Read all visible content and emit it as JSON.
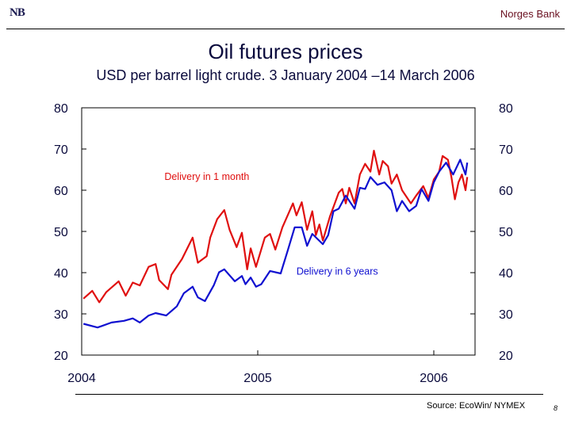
{
  "header": {
    "logo": "NB",
    "bank_name": "Norges Bank"
  },
  "footer": {
    "source": "Source: EcoWin/ NYMEX",
    "page_number": "8"
  },
  "chart_data": {
    "type": "line",
    "title": "Oil futures prices",
    "subtitle": "USD per barrel light crude. 3 January 2004 –14 March 2006",
    "xlim": [
      2004.0,
      2006.21
    ],
    "ylim": [
      20,
      80
    ],
    "yticks": [
      20,
      30,
      40,
      50,
      60,
      70,
      80
    ],
    "xticks": [
      {
        "value": 2004,
        "label": "2004"
      },
      {
        "value": 2005,
        "label": "2005"
      },
      {
        "value": 2006,
        "label": "2006"
      }
    ],
    "grid": false,
    "series": [
      {
        "name": "Delivery in 1 month",
        "color": "#e01010",
        "label_at": [
          2004.47,
          62.5
        ],
        "points": [
          [
            2004.01,
            33.7
          ],
          [
            2004.06,
            35.6
          ],
          [
            2004.1,
            32.8
          ],
          [
            2004.14,
            35.3
          ],
          [
            2004.21,
            37.9
          ],
          [
            2004.25,
            34.4
          ],
          [
            2004.29,
            37.6
          ],
          [
            2004.33,
            36.9
          ],
          [
            2004.38,
            41.4
          ],
          [
            2004.42,
            42.1
          ],
          [
            2004.44,
            38.2
          ],
          [
            2004.49,
            36.0
          ],
          [
            2004.51,
            39.5
          ],
          [
            2004.57,
            43.3
          ],
          [
            2004.63,
            48.5
          ],
          [
            2004.66,
            42.4
          ],
          [
            2004.71,
            44.0
          ],
          [
            2004.73,
            48.5
          ],
          [
            2004.77,
            53.0
          ],
          [
            2004.81,
            55.2
          ],
          [
            2004.84,
            50.4
          ],
          [
            2004.88,
            46.2
          ],
          [
            2004.91,
            49.7
          ],
          [
            2004.94,
            40.8
          ],
          [
            2004.96,
            45.9
          ],
          [
            2004.99,
            41.4
          ],
          [
            2005.04,
            48.5
          ],
          [
            2005.07,
            49.4
          ],
          [
            2005.1,
            45.6
          ],
          [
            2005.14,
            51.0
          ],
          [
            2005.2,
            56.8
          ],
          [
            2005.22,
            53.9
          ],
          [
            2005.25,
            57.1
          ],
          [
            2005.28,
            50.4
          ],
          [
            2005.31,
            54.9
          ],
          [
            2005.33,
            49.1
          ],
          [
            2005.35,
            51.7
          ],
          [
            2005.37,
            47.8
          ],
          [
            2005.41,
            53.6
          ],
          [
            2005.46,
            59.4
          ],
          [
            2005.48,
            60.3
          ],
          [
            2005.5,
            56.8
          ],
          [
            2005.52,
            60.6
          ],
          [
            2005.55,
            56.8
          ],
          [
            2005.58,
            63.8
          ],
          [
            2005.61,
            66.4
          ],
          [
            2005.64,
            64.5
          ],
          [
            2005.66,
            69.6
          ],
          [
            2005.69,
            63.8
          ],
          [
            2005.71,
            67.1
          ],
          [
            2005.74,
            65.8
          ],
          [
            2005.76,
            61.6
          ],
          [
            2005.79,
            63.8
          ],
          [
            2005.82,
            60.0
          ],
          [
            2005.87,
            56.8
          ],
          [
            2005.9,
            58.7
          ],
          [
            2005.94,
            61.0
          ],
          [
            2005.97,
            58.1
          ],
          [
            2006.0,
            62.6
          ],
          [
            2006.03,
            64.5
          ],
          [
            2006.05,
            68.3
          ],
          [
            2006.08,
            67.4
          ],
          [
            2006.1,
            63.2
          ],
          [
            2006.12,
            57.8
          ],
          [
            2006.14,
            61.9
          ],
          [
            2006.16,
            63.8
          ],
          [
            2006.18,
            60.0
          ],
          [
            2006.19,
            63.2
          ]
        ]
      },
      {
        "name": "Delivery in 6 years",
        "color": "#1010d0",
        "label_at": [
          2005.22,
          39.5
        ],
        "points": [
          [
            2004.01,
            27.6
          ],
          [
            2004.09,
            26.7
          ],
          [
            2004.17,
            27.9
          ],
          [
            2004.24,
            28.3
          ],
          [
            2004.29,
            28.9
          ],
          [
            2004.33,
            27.9
          ],
          [
            2004.38,
            29.6
          ],
          [
            2004.42,
            30.2
          ],
          [
            2004.48,
            29.6
          ],
          [
            2004.54,
            31.8
          ],
          [
            2004.58,
            35.0
          ],
          [
            2004.63,
            36.6
          ],
          [
            2004.66,
            34.0
          ],
          [
            2004.7,
            33.1
          ],
          [
            2004.75,
            36.9
          ],
          [
            2004.78,
            40.1
          ],
          [
            2004.81,
            40.8
          ],
          [
            2004.87,
            37.9
          ],
          [
            2004.91,
            39.2
          ],
          [
            2004.93,
            37.2
          ],
          [
            2004.96,
            38.8
          ],
          [
            2004.99,
            36.6
          ],
          [
            2005.02,
            37.2
          ],
          [
            2005.07,
            40.4
          ],
          [
            2005.13,
            39.8
          ],
          [
            2005.17,
            45.3
          ],
          [
            2005.21,
            51.0
          ],
          [
            2005.25,
            51.0
          ],
          [
            2005.28,
            46.5
          ],
          [
            2005.31,
            49.4
          ],
          [
            2005.37,
            46.9
          ],
          [
            2005.4,
            49.1
          ],
          [
            2005.43,
            54.9
          ],
          [
            2005.46,
            55.5
          ],
          [
            2005.5,
            58.7
          ],
          [
            2005.55,
            55.5
          ],
          [
            2005.58,
            60.6
          ],
          [
            2005.61,
            60.3
          ],
          [
            2005.64,
            63.2
          ],
          [
            2005.68,
            61.3
          ],
          [
            2005.72,
            61.9
          ],
          [
            2005.76,
            60.0
          ],
          [
            2005.79,
            54.9
          ],
          [
            2005.82,
            57.4
          ],
          [
            2005.86,
            54.9
          ],
          [
            2005.9,
            56.2
          ],
          [
            2005.93,
            60.3
          ],
          [
            2005.97,
            57.4
          ],
          [
            2006.0,
            61.9
          ],
          [
            2006.03,
            64.5
          ],
          [
            2006.07,
            66.7
          ],
          [
            2006.11,
            63.8
          ],
          [
            2006.15,
            67.4
          ],
          [
            2006.18,
            63.8
          ],
          [
            2006.19,
            66.7
          ]
        ]
      }
    ]
  }
}
